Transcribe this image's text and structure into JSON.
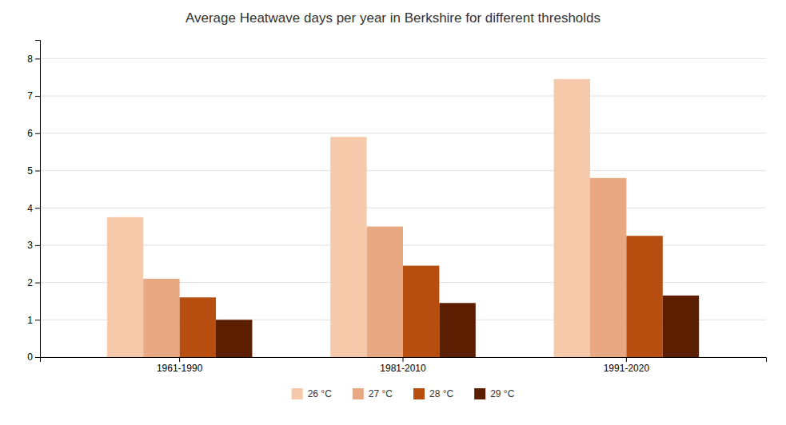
{
  "chart_data": {
    "type": "bar",
    "title": "Average Heatwave days per year in Berkshire for different thresholds",
    "categories": [
      "1961-1990",
      "1981-2010",
      "1991-2020"
    ],
    "series": [
      {
        "name": "26 °C",
        "color": "#f5c9aa",
        "values": [
          3.75,
          5.9,
          7.45
        ]
      },
      {
        "name": "27 °C",
        "color": "#e8a882",
        "values": [
          2.1,
          3.5,
          4.8
        ]
      },
      {
        "name": "28 °C",
        "color": "#b84d10",
        "values": [
          1.6,
          2.45,
          3.25
        ]
      },
      {
        "name": "29 °C",
        "color": "#5c1e00",
        "values": [
          1.0,
          1.45,
          1.65
        ]
      }
    ],
    "ylim": [
      0,
      8.5
    ],
    "yticks": [
      0,
      1,
      2,
      3,
      4,
      5,
      6,
      7,
      8
    ],
    "grid": true,
    "legend": "bottom"
  }
}
